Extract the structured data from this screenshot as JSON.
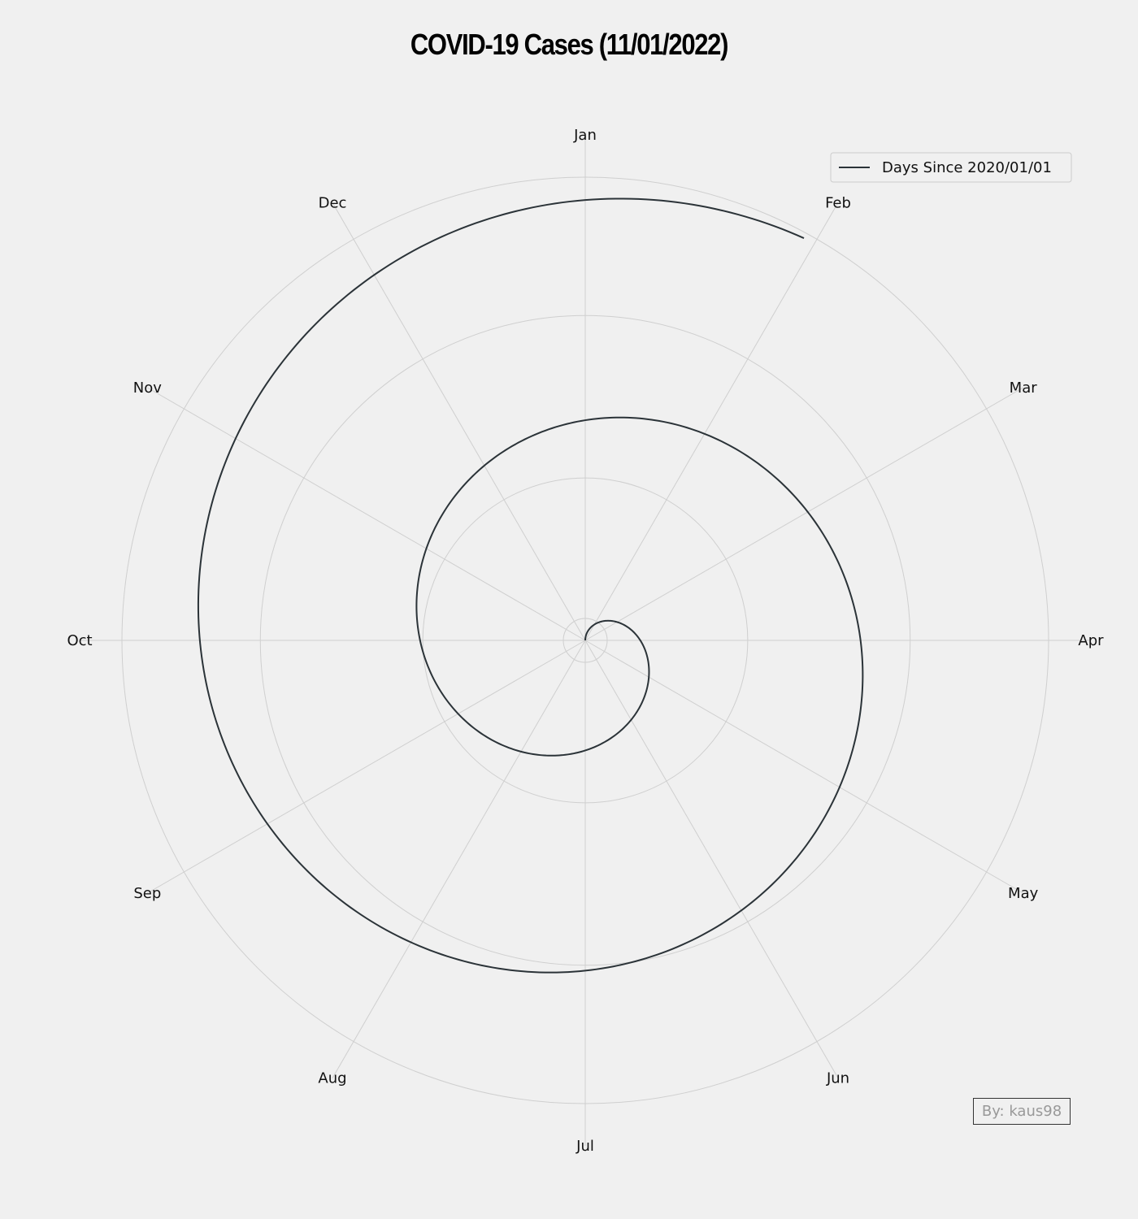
{
  "chart_data": {
    "type": "line",
    "polar": true,
    "title": "COVID-19 Cases (11/01/2022)",
    "theta_labels": [
      "Jan",
      "Feb",
      "Mar",
      "Apr",
      "May",
      "Jun",
      "Jul",
      "Aug",
      "Sep",
      "Oct",
      "Nov",
      "Dec"
    ],
    "radial_gridlines": true,
    "series": [
      {
        "name": "Days Since 2020/01/01",
        "color": "#2b3338",
        "x": [
          "2020/01/01",
          "2020/04/01",
          "2020/07/01",
          "2020/10/01",
          "2021/01/01",
          "2021/04/01",
          "2021/07/01",
          "2021/10/01",
          "2022/01/01",
          "2022/01/31"
        ],
        "y": [
          0,
          91,
          182,
          274,
          366,
          456,
          547,
          639,
          731,
          761
        ]
      }
    ],
    "legend": {
      "placement": "top-right",
      "label": "Days Since 2020/01/01"
    }
  },
  "credit": "By: kaus98",
  "colors": {
    "background": "#f0f0f0",
    "grid": "#cfcfcf",
    "line": "#2b3338",
    "credit_text": "#999999"
  }
}
